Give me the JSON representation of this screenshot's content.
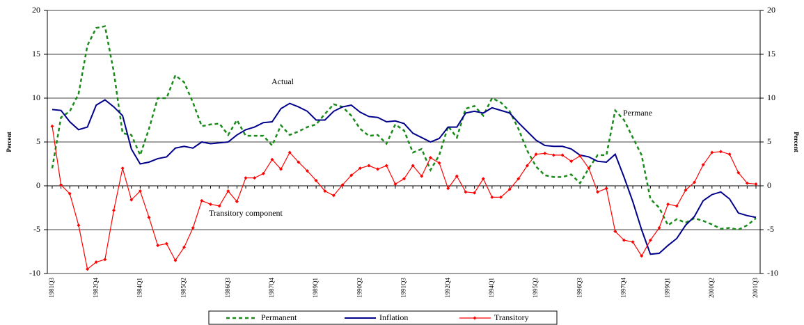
{
  "chart_data": {
    "type": "line",
    "y_label": "Percent",
    "y2_label": "Percent",
    "annotations": [
      "Actual",
      "Permane",
      "Transitory component"
    ],
    "categories": [
      "1981Q3",
      null,
      null,
      null,
      null,
      "1982Q4",
      null,
      null,
      null,
      null,
      "1984Q1",
      null,
      null,
      null,
      null,
      "1985Q2",
      null,
      null,
      null,
      null,
      "1986Q3",
      null,
      null,
      null,
      null,
      "1987Q4",
      null,
      null,
      null,
      null,
      "1989Q1",
      null,
      null,
      null,
      null,
      "1990Q2",
      null,
      null,
      null,
      null,
      "1991Q3",
      null,
      null,
      null,
      null,
      "1992Q4",
      null,
      null,
      null,
      null,
      "1994Q1",
      null,
      null,
      null,
      null,
      "1995Q2",
      null,
      null,
      null,
      null,
      "1996Q3",
      null,
      null,
      null,
      null,
      "1997Q4",
      null,
      null,
      null,
      null,
      "1999Q1",
      null,
      null,
      null,
      null,
      "2000Q2",
      null,
      null,
      null,
      null,
      "2001Q3"
    ],
    "series": [
      {
        "name": "Permanent",
        "color": "#1a8a1a",
        "dashed": true,
        "marker": false,
        "values": [
          2.0,
          7.8,
          8.5,
          10.5,
          16.0,
          18.0,
          18.2,
          13.0,
          6.0,
          5.8,
          3.5,
          6.5,
          10.0,
          10.0,
          12.6,
          11.8,
          9.5,
          6.8,
          7.0,
          7.1,
          5.8,
          7.5,
          5.7,
          5.7,
          5.7,
          4.6,
          6.9,
          5.8,
          6.2,
          6.7,
          7.0,
          8.2,
          9.3,
          9.0,
          8.0,
          6.5,
          5.7,
          5.8,
          4.8,
          7.0,
          6.3,
          3.8,
          4.2,
          1.8,
          3.5,
          6.8,
          5.5,
          8.8,
          9.1,
          8.0,
          10.0,
          9.5,
          8.5,
          6.5,
          4.0,
          2.2,
          1.2,
          1.0,
          1.0,
          1.3,
          0.3,
          2.0,
          3.5,
          3.5,
          8.6,
          7.5,
          5.5,
          3.5,
          -1.5,
          -2.5,
          -4.5,
          -3.8,
          -4.2,
          -3.7,
          -4.0,
          -4.4,
          -4.9,
          -4.8,
          -5.0,
          -4.5,
          -3.7
        ]
      },
      {
        "name": "Inflation",
        "color": "#00008b",
        "dashed": false,
        "marker": false,
        "values": [
          8.7,
          8.6,
          7.3,
          6.4,
          6.7,
          9.2,
          9.8,
          9.0,
          8.0,
          4.2,
          2.5,
          2.7,
          3.1,
          3.3,
          4.3,
          4.5,
          4.3,
          5.0,
          4.8,
          4.9,
          5.0,
          5.8,
          6.4,
          6.7,
          7.2,
          7.3,
          8.8,
          9.4,
          9.0,
          8.5,
          7.5,
          7.5,
          8.5,
          9.0,
          9.2,
          8.4,
          7.9,
          7.8,
          7.3,
          7.4,
          7.1,
          6.0,
          5.5,
          5.0,
          5.4,
          6.7,
          6.7,
          8.3,
          8.5,
          8.3,
          8.9,
          8.6,
          8.3,
          7.2,
          6.2,
          5.2,
          4.6,
          4.5,
          4.5,
          4.2,
          3.5,
          3.3,
          2.8,
          2.7,
          3.6,
          1.0,
          -1.8,
          -5.0,
          -7.8,
          -7.7,
          -6.8,
          -6.0,
          -4.5,
          -3.5,
          -1.7,
          -1.0,
          -0.7,
          -1.5,
          -3.1,
          -3.4,
          -3.6
        ]
      },
      {
        "name": "Transitory",
        "color": "#ff0000",
        "dashed": false,
        "marker": true,
        "values": [
          6.8,
          0.1,
          -0.9,
          -4.5,
          -9.5,
          -8.7,
          -8.4,
          -2.8,
          2.0,
          -1.6,
          -0.6,
          -3.6,
          -6.8,
          -6.6,
          -8.5,
          -7.0,
          -4.8,
          -1.7,
          -2.1,
          -2.3,
          -0.6,
          -1.8,
          0.9,
          0.9,
          1.4,
          3.0,
          1.9,
          3.8,
          2.7,
          1.7,
          0.6,
          -0.6,
          -1.1,
          0.1,
          1.2,
          2.0,
          2.3,
          1.9,
          2.3,
          0.2,
          0.8,
          2.3,
          1.1,
          3.2,
          2.6,
          -0.3,
          1.1,
          -0.7,
          -0.8,
          0.8,
          -1.3,
          -1.3,
          -0.4,
          0.8,
          2.3,
          3.6,
          3.7,
          3.5,
          3.5,
          2.8,
          3.4,
          2.0,
          -0.7,
          -0.3,
          -5.2,
          -6.2,
          -6.4,
          -8.0,
          -6.2,
          -4.8,
          -2.1,
          -2.3,
          -0.5,
          0.4,
          2.4,
          3.8,
          3.9,
          3.6,
          1.5,
          0.3,
          0.2
        ]
      }
    ],
    "ylim": [
      -10,
      20
    ],
    "yticks": [
      -10,
      -5,
      0,
      5,
      10,
      15,
      20
    ],
    "y2lim": [
      -10,
      20
    ],
    "y2ticks": [
      -10,
      -5,
      0,
      5,
      10,
      15,
      20
    ],
    "grid": true,
    "legend": "bottom"
  }
}
